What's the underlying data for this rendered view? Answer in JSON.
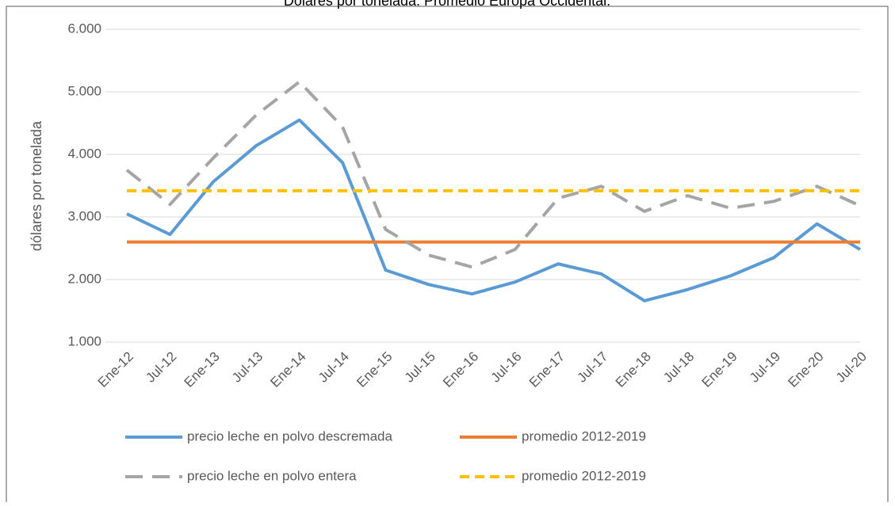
{
  "chart_data": {
    "type": "line",
    "title": "Dólares por tonelada. Promedio Europa Occidental.",
    "y_label": "dólares por tonelada",
    "categories": [
      "Ene-12",
      "Jul-12",
      "Ene-13",
      "Jul-13",
      "Ene-14",
      "Jul-14",
      "Ene-15",
      "Jul-15",
      "Ene-16",
      "Jul-16",
      "Ene-17",
      "Jul-17",
      "Ene-18",
      "Jul-18",
      "Ene-19",
      "Jul-19",
      "Ene-20",
      "Jul-20"
    ],
    "series": [
      {
        "name": "precio leche en polvo descremada",
        "color": "#5b9bd5",
        "dash": "solid",
        "values": [
          3050,
          2720,
          3560,
          4140,
          4550,
          3870,
          2150,
          1920,
          1770,
          1960,
          2250,
          2090,
          1660,
          1840,
          2060,
          2350,
          2890,
          2480
        ]
      },
      {
        "name": "promedio 2012-2019",
        "color": "#ed7d31",
        "dash": "solid",
        "values": [
          2600,
          2600,
          2600,
          2600,
          2600,
          2600,
          2600,
          2600,
          2600,
          2600,
          2600,
          2600,
          2600,
          2600,
          2600,
          2600,
          2600,
          2600
        ]
      },
      {
        "name": "precio leche en polvo entera",
        "color": "#a5a5a5",
        "dash": "long",
        "values": [
          3750,
          3200,
          3940,
          4630,
          5160,
          4440,
          2800,
          2390,
          2200,
          2480,
          3300,
          3490,
          3090,
          3340,
          3140,
          3250,
          3490,
          3180
        ]
      },
      {
        "name": "promedio 2012-2019",
        "color": "#ffc000",
        "dash": "short",
        "values": [
          3420,
          3420,
          3420,
          3420,
          3420,
          3420,
          3420,
          3420,
          3420,
          3420,
          3420,
          3420,
          3420,
          3420,
          3420,
          3420,
          3420,
          3420
        ]
      }
    ],
    "ylim": [
      1000,
      6000
    ],
    "yticks": [
      {
        "value": 1000,
        "label": "1.000"
      },
      {
        "value": 2000,
        "label": "2.000"
      },
      {
        "value": 3000,
        "label": "3.000"
      },
      {
        "value": 4000,
        "label": "4.000"
      },
      {
        "value": 5000,
        "label": "5.000"
      },
      {
        "value": 6000,
        "label": "6.000"
      }
    ],
    "grid": true,
    "legend": "bottom"
  }
}
